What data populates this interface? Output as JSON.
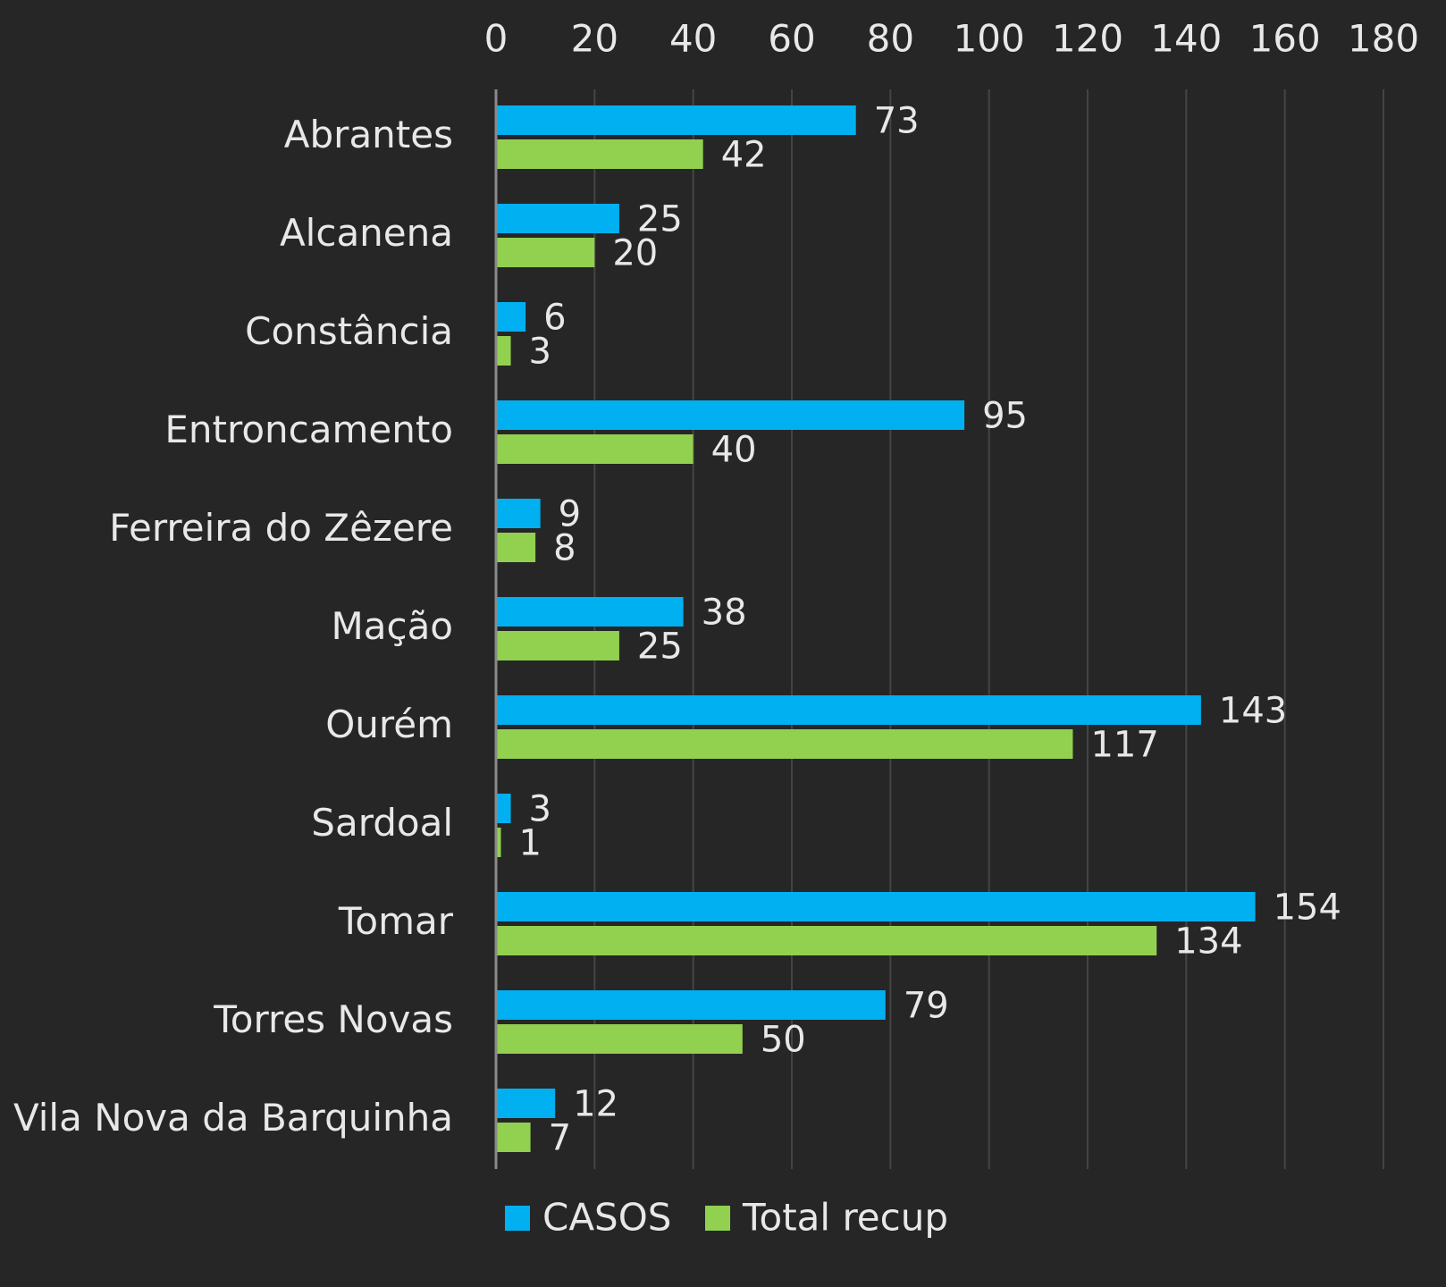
{
  "chart_data": {
    "type": "bar",
    "orientation": "horizontal",
    "categories": [
      "Abrantes",
      "Alcanena",
      "Constância",
      "Entroncamento",
      "Ferreira do Zêzere",
      "Mação",
      "Ourém",
      "Sardoal",
      "Tomar",
      "Torres Novas",
      "Vila Nova da Barquinha"
    ],
    "series": [
      {
        "name": "CASOS",
        "color": "#00b0f0",
        "values": [
          73,
          25,
          6,
          95,
          9,
          38,
          143,
          3,
          154,
          79,
          12
        ]
      },
      {
        "name": "Total recup",
        "color": "#92d050",
        "values": [
          42,
          20,
          3,
          40,
          8,
          25,
          117,
          1,
          134,
          50,
          7
        ]
      }
    ],
    "xlim": [
      0,
      180
    ],
    "xticks": [
      "0",
      "20",
      "40",
      "60",
      "80",
      "100",
      "120",
      "140",
      "160",
      "180"
    ],
    "x_axis_position": "top",
    "grid": true,
    "legend_position": "bottom",
    "data_labels": true,
    "background": "#262626"
  }
}
